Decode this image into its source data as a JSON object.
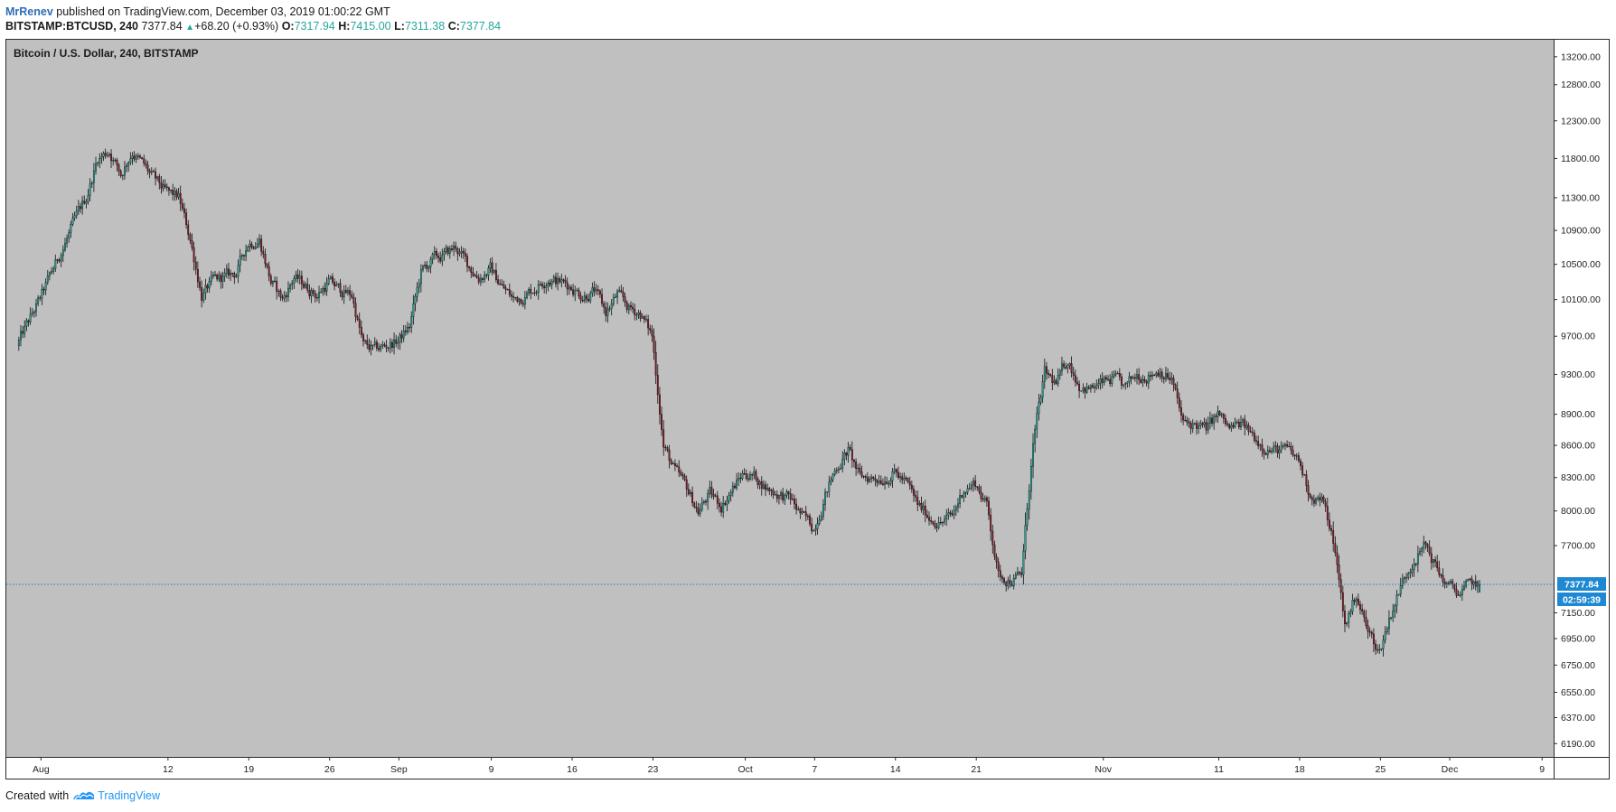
{
  "header": {
    "author": "MrRenev",
    "published": "published on TradingView.com, December 03, 2019 01:00:22 GMT",
    "symbol": "BITSTAMP:BTCUSD, 240",
    "last": "7377.84",
    "change": "+68.20 (+0.93%)",
    "o_label": "O:",
    "o_value": "7317.94",
    "h_label": "H:",
    "h_value": "7415.00",
    "l_label": "L:",
    "l_value": "7311.38",
    "c_label": "C:",
    "c_value": "7377.84"
  },
  "footer": {
    "created_with": "Created with",
    "brand": "TradingView"
  },
  "colors": {
    "plot_background": "#c0c0c0",
    "candle_up": "#26a69a",
    "candle_down": "#8b1a2b",
    "wick": "#111111",
    "last_price_line": "#2a7bbf",
    "price_label": "#1e88d2",
    "brand": "#2196f3"
  },
  "chart_data": {
    "type": "candlestick",
    "title": "Bitcoin / U.S. Dollar, 240, BITSTAMP",
    "interval_hours": 4,
    "x_ticks": [
      "Aug",
      "12",
      "19",
      "26",
      "Sep",
      "9",
      "16",
      "23",
      "Oct",
      "7",
      "14",
      "21",
      "Nov",
      "11",
      "18",
      "25",
      "Dec",
      "9"
    ],
    "y_ticks": [
      "13200.00",
      "12800.00",
      "12300.00",
      "11800.00",
      "11300.00",
      "10900.00",
      "10500.00",
      "10100.00",
      "9700.00",
      "9300.00",
      "8900.00",
      "8600.00",
      "8300.00",
      "8000.00",
      "7700.00",
      "7377.84",
      "7150.00",
      "6950.00",
      "6750.00",
      "6550.00",
      "6370.00",
      "6190.00"
    ],
    "y_scale": "log",
    "ylim": [
      6100,
      13450
    ],
    "x_range": [
      "2019-07-29",
      "2019-12-10"
    ],
    "grid": false,
    "last_price": 7377.84,
    "last_price_label": "7377.84",
    "countdown_label": "02:59:39",
    "series_anchors": [
      [
        "2019-07-30",
        9600
      ],
      [
        "2019-08-01",
        10100
      ],
      [
        "2019-08-03",
        10700
      ],
      [
        "2019-08-05",
        11300
      ],
      [
        "2019-08-06",
        11800
      ],
      [
        "2019-08-07",
        11900
      ],
      [
        "2019-08-08",
        11600
      ],
      [
        "2019-08-09",
        11900
      ],
      [
        "2019-08-10",
        11700
      ],
      [
        "2019-08-11",
        11500
      ],
      [
        "2019-08-12",
        11350
      ],
      [
        "2019-08-13",
        11300
      ],
      [
        "2019-08-14",
        10800
      ],
      [
        "2019-08-15",
        10150
      ],
      [
        "2019-08-16",
        10300
      ],
      [
        "2019-08-17",
        10350
      ],
      [
        "2019-08-18",
        10400
      ],
      [
        "2019-08-19",
        10750
      ],
      [
        "2019-08-20",
        10800
      ],
      [
        "2019-08-21",
        10300
      ],
      [
        "2019-08-22",
        10100
      ],
      [
        "2019-08-23",
        10350
      ],
      [
        "2019-08-24",
        10250
      ],
      [
        "2019-08-25",
        10150
      ],
      [
        "2019-08-26",
        10300
      ],
      [
        "2019-08-27",
        10200
      ],
      [
        "2019-08-28",
        10150
      ],
      [
        "2019-08-29",
        9600
      ],
      [
        "2019-08-30",
        9550
      ],
      [
        "2019-09-01",
        9650
      ],
      [
        "2019-09-02",
        9800
      ],
      [
        "2019-09-03",
        10400
      ],
      [
        "2019-09-04",
        10550
      ],
      [
        "2019-09-05",
        10600
      ],
      [
        "2019-09-06",
        10700
      ],
      [
        "2019-09-07",
        10500
      ],
      [
        "2019-09-08",
        10350
      ],
      [
        "2019-09-09",
        10450
      ],
      [
        "2019-09-10",
        10250
      ],
      [
        "2019-09-11",
        10100
      ],
      [
        "2019-09-12",
        10150
      ],
      [
        "2019-09-13",
        10250
      ],
      [
        "2019-09-14",
        10350
      ],
      [
        "2019-09-15",
        10300
      ],
      [
        "2019-09-16",
        10250
      ],
      [
        "2019-09-17",
        10150
      ],
      [
        "2019-09-18",
        10200
      ],
      [
        "2019-09-19",
        9950
      ],
      [
        "2019-09-20",
        10150
      ],
      [
        "2019-09-21",
        10000
      ],
      [
        "2019-09-22",
        9950
      ],
      [
        "2019-09-23",
        9700
      ],
      [
        "2019-09-24",
        8600
      ],
      [
        "2019-09-25",
        8350
      ],
      [
        "2019-09-26",
        8200
      ],
      [
        "2019-09-27",
        8000
      ],
      [
        "2019-09-28",
        8150
      ],
      [
        "2019-09-29",
        8050
      ],
      [
        "2019-09-30",
        8200
      ],
      [
        "2019-10-01",
        8350
      ],
      [
        "2019-10-02",
        8300
      ],
      [
        "2019-10-03",
        8200
      ],
      [
        "2019-10-04",
        8150
      ],
      [
        "2019-10-05",
        8100
      ],
      [
        "2019-10-06",
        7950
      ],
      [
        "2019-10-07",
        7850
      ],
      [
        "2019-10-08",
        8150
      ],
      [
        "2019-10-09",
        8400
      ],
      [
        "2019-10-10",
        8550
      ],
      [
        "2019-10-11",
        8300
      ],
      [
        "2019-10-12",
        8300
      ],
      [
        "2019-10-13",
        8300
      ],
      [
        "2019-10-14",
        8350
      ],
      [
        "2019-10-15",
        8250
      ],
      [
        "2019-10-16",
        8050
      ],
      [
        "2019-10-17",
        7950
      ],
      [
        "2019-10-18",
        7900
      ],
      [
        "2019-10-19",
        7950
      ],
      [
        "2019-10-20",
        8200
      ],
      [
        "2019-10-21",
        8250
      ],
      [
        "2019-10-22",
        8050
      ],
      [
        "2019-10-23",
        7450
      ],
      [
        "2019-10-24",
        7420
      ],
      [
        "2019-10-25",
        7450
      ],
      [
        "2019-10-26",
        8600
      ],
      [
        "2019-10-27",
        9300
      ],
      [
        "2019-10-28",
        9200
      ],
      [
        "2019-10-29",
        9450
      ],
      [
        "2019-10-30",
        9200
      ],
      [
        "2019-10-31",
        9150
      ],
      [
        "2019-11-01",
        9200
      ],
      [
        "2019-11-02",
        9250
      ],
      [
        "2019-11-03",
        9150
      ],
      [
        "2019-11-04",
        9300
      ],
      [
        "2019-11-05",
        9300
      ],
      [
        "2019-11-06",
        9350
      ],
      [
        "2019-11-07",
        9250
      ],
      [
        "2019-11-08",
        8800
      ],
      [
        "2019-11-09",
        8800
      ],
      [
        "2019-11-10",
        8750
      ],
      [
        "2019-11-11",
        8900
      ],
      [
        "2019-11-12",
        8750
      ],
      [
        "2019-11-13",
        8800
      ],
      [
        "2019-11-14",
        8700
      ],
      [
        "2019-11-15",
        8600
      ],
      [
        "2019-11-16",
        8550
      ],
      [
        "2019-11-17",
        8550
      ],
      [
        "2019-11-18",
        8450
      ],
      [
        "2019-11-19",
        8150
      ],
      [
        "2019-11-20",
        8100
      ],
      [
        "2019-11-21",
        7750
      ],
      [
        "2019-11-22",
        7050
      ],
      [
        "2019-11-23",
        7300
      ],
      [
        "2019-11-24",
        7000
      ],
      [
        "2019-11-25",
        6850
      ],
      [
        "2019-11-26",
        7150
      ],
      [
        "2019-11-27",
        7400
      ],
      [
        "2019-11-28",
        7600
      ],
      [
        "2019-11-29",
        7700
      ],
      [
        "2019-11-30",
        7500
      ],
      [
        "2019-12-01",
        7350
      ],
      [
        "2019-12-02",
        7310
      ],
      [
        "2019-12-03",
        7378
      ]
    ]
  }
}
